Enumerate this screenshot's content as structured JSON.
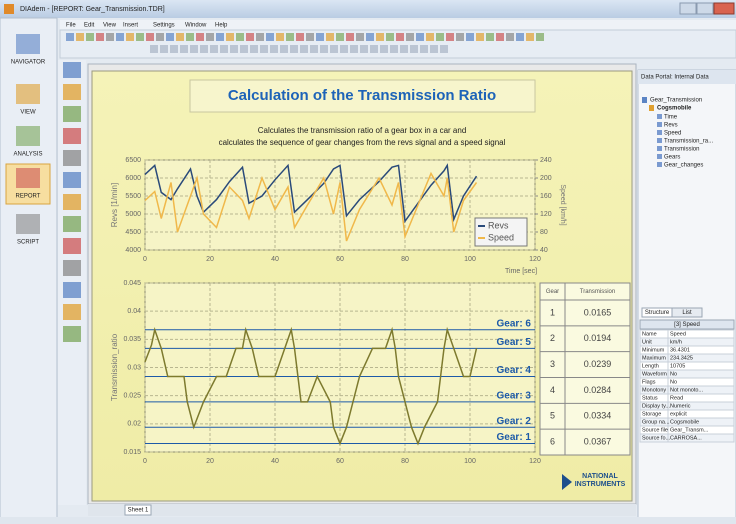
{
  "window": {
    "title": "DIAdem - [REPORT: Gear_Transmission.TDR]"
  },
  "menu": [
    "File",
    "Edit",
    "View",
    "Insert",
    "Settings",
    "Window",
    "Help"
  ],
  "navigator": [
    "NAVIGATOR",
    "VIEW",
    "ANALYSIS",
    "REPORT",
    "SCRIPT"
  ],
  "report": {
    "title": "Calculation of the Transmission Ratio",
    "subtitle": [
      "Calculates the transmission ratio of a gear box in a car and",
      "calculates the sequence of gear changes from the revs signal and a speed signal"
    ],
    "logo": [
      "NATIONAL",
      "INSTRUMENTS"
    ],
    "tab": "Sheet 1"
  },
  "chart_data": [
    {
      "type": "line",
      "xlabel": "Time [sec]",
      "ylabel": "Revs [1/min]",
      "y2label": "Speed [km/h]",
      "x": [
        0,
        3,
        5,
        8,
        10,
        14,
        16,
        18,
        22,
        26,
        30,
        32,
        36,
        40,
        44,
        46,
        50,
        55,
        58,
        60,
        62,
        66,
        72,
        76,
        78,
        80,
        84,
        88,
        92,
        93,
        95,
        98,
        102
      ],
      "series": [
        {
          "name": "Revs",
          "color": "#2a4a7a",
          "values": [
            6100,
            6350,
            5600,
            5400,
            5700,
            6250,
            5500,
            5050,
            5400,
            5900,
            6300,
            5300,
            5500,
            5950,
            6350,
            5050,
            5400,
            5850,
            6250,
            6350,
            4950,
            5400,
            5900,
            6300,
            6350,
            4800,
            5300,
            5800,
            6200,
            6350,
            4850,
            5500,
            6050
          ]
        },
        {
          "name": "Speed",
          "color": "#f0b84a",
          "axis": "y2",
          "values": [
            150,
            170,
            110,
            190,
            80,
            160,
            200,
            120,
            90,
            180,
            150,
            110,
            200,
            130,
            180,
            90,
            140,
            200,
            120,
            190,
            60,
            130,
            200,
            140,
            190,
            70,
            140,
            210,
            160,
            200,
            80,
            150,
            190
          ]
        }
      ],
      "xlim": [
        0,
        120
      ],
      "xticks": [
        0,
        20,
        40,
        60,
        80,
        100,
        120
      ],
      "ylim": [
        4000,
        6500
      ],
      "yticks": [
        4000,
        4500,
        5000,
        5500,
        6000,
        6500
      ],
      "y2lim": [
        40,
        240
      ],
      "y2ticks": [
        40,
        80,
        120,
        160,
        200,
        240
      ],
      "grid": true,
      "legend": "bottom-right"
    },
    {
      "type": "line",
      "ylabel": "Transmission_ratio",
      "x": [
        0,
        2,
        3,
        5,
        7,
        10,
        12,
        13,
        15,
        18,
        22,
        25,
        28,
        30,
        31,
        33,
        35,
        40,
        43,
        45,
        46,
        48,
        50,
        53,
        57,
        58,
        60,
        62,
        64,
        66,
        70,
        74,
        76,
        77,
        78,
        80,
        82,
        84,
        86,
        90,
        92,
        93,
        95,
        98,
        100,
        102
      ],
      "series": [
        {
          "color": "#7d7a2e",
          "values": [
            0.031,
            0.034,
            0.0367,
            0.0334,
            0.0284,
            0.0284,
            0.0284,
            0.0239,
            0.0194,
            0.0239,
            0.0284,
            0.0284,
            0.0334,
            0.0334,
            0.0367,
            0.0334,
            0.0284,
            0.0284,
            0.0334,
            0.0367,
            0.0334,
            0.0239,
            0.0239,
            0.0284,
            0.0239,
            0.0194,
            0.0165,
            0.0194,
            0.0239,
            0.0284,
            0.0334,
            0.0334,
            0.0367,
            0.0334,
            0.0284,
            0.0239,
            0.0194,
            0.0165,
            0.0194,
            0.0239,
            0.0334,
            0.0367,
            0.0334,
            0.0284,
            0.0284,
            0.0334
          ]
        }
      ],
      "gear_lines": [
        {
          "label": "Gear: 6",
          "value": 0.0367
        },
        {
          "label": "Gear: 5",
          "value": 0.0334
        },
        {
          "label": "Gear: 4",
          "value": 0.0284
        },
        {
          "label": "Gear: 3",
          "value": 0.0239
        },
        {
          "label": "Gear: 2",
          "value": 0.0194
        },
        {
          "label": "Gear: 1",
          "value": 0.0165
        }
      ],
      "xlim": [
        0,
        120
      ],
      "xticks": [
        0,
        20,
        40,
        60,
        80,
        100,
        120
      ],
      "ylim": [
        0.015,
        0.045
      ],
      "yticks": [
        0.015,
        0.02,
        0.025,
        0.03,
        0.035,
        0.04,
        0.045
      ],
      "grid": true
    }
  ],
  "table": {
    "header": [
      "Gear",
      "Transmission"
    ],
    "rows": [
      [
        1,
        0.0165
      ],
      [
        2,
        0.0194
      ],
      [
        3,
        0.0239
      ],
      [
        4,
        0.0284
      ],
      [
        5,
        0.0334
      ],
      [
        6,
        0.0367
      ]
    ]
  },
  "data_portal": {
    "title": "Data Portal: Internal Data",
    "root": "Gear_Transmission",
    "group": "Cogsmobile",
    "channels": [
      "Time",
      "Revs",
      "Speed",
      "Transmission_ra...",
      "Transmission",
      "Gears",
      "Gear_changes"
    ],
    "tabs": [
      "Structure",
      "List"
    ],
    "channel_header": "[3] Speed",
    "properties": [
      [
        "Name",
        "Speed"
      ],
      [
        "Unit",
        "km/h"
      ],
      [
        "Minimum",
        "36.4301"
      ],
      [
        "Maximum",
        "234.3425"
      ],
      [
        "Length",
        "10705"
      ],
      [
        "Waveform",
        "No"
      ],
      [
        "Flags",
        "No"
      ],
      [
        "Monotony",
        "Not monoto..."
      ],
      [
        "Status",
        "Read"
      ],
      [
        "Display ty...",
        "Numeric"
      ],
      [
        "Storage",
        "explicit"
      ],
      [
        "Group na...",
        "Cogsmobile"
      ],
      [
        "Source file",
        "Gear_Transm..."
      ],
      [
        "Source fo...",
        "CARROSA..."
      ]
    ]
  }
}
